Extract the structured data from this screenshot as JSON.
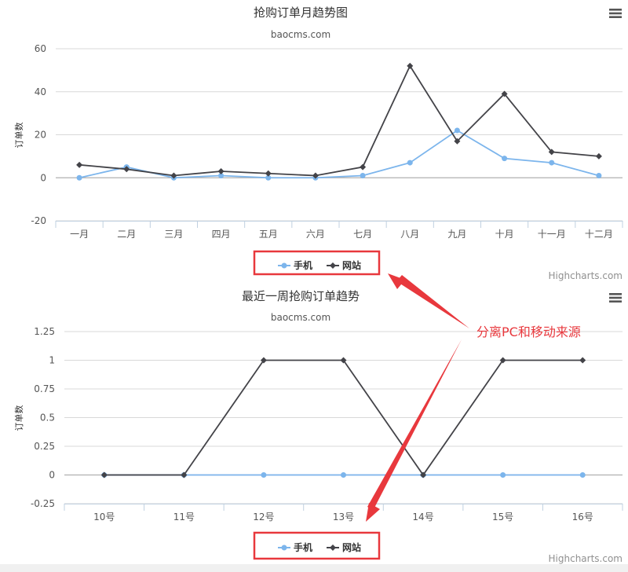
{
  "chart_data": [
    {
      "type": "line",
      "title": "抢购订单月趋势图",
      "subtitle": "baocms.com",
      "ylabel": "订单数",
      "xlabel": "",
      "ylim": [
        -20,
        60
      ],
      "y_ticks": [
        60,
        40,
        20,
        0,
        -20
      ],
      "categories": [
        "一月",
        "二月",
        "三月",
        "四月",
        "五月",
        "六月",
        "七月",
        "八月",
        "九月",
        "十月",
        "十一月",
        "十二月"
      ],
      "series": [
        {
          "name": "手机",
          "color": "#7cb5ec",
          "marker": "circle",
          "values": [
            0,
            5,
            0,
            1,
            0,
            0,
            1,
            7,
            22,
            9,
            7,
            1
          ]
        },
        {
          "name": "网站",
          "color": "#434348",
          "marker": "diamond",
          "values": [
            6,
            4,
            1,
            3,
            2,
            1,
            5,
            52,
            17,
            39,
            12,
            10
          ]
        }
      ],
      "legend": "bottom-center",
      "grid": true,
      "credits": "Highcharts.com",
      "menu_icon": "hamburger-menu-icon"
    },
    {
      "type": "line",
      "title": "最近一周抢购订单趋势",
      "subtitle": "baocms.com",
      "ylabel": "订单数",
      "xlabel": "",
      "ylim": [
        -0.25,
        1.25
      ],
      "y_ticks": [
        "1.25",
        "1",
        "0.75",
        "0.5",
        "0.25",
        "0",
        "-0.25"
      ],
      "categories": [
        "10号",
        "11号",
        "12号",
        "13号",
        "14号",
        "15号",
        "16号"
      ],
      "series": [
        {
          "name": "手机",
          "color": "#7cb5ec",
          "marker": "circle",
          "values": [
            0,
            0,
            0,
            0,
            0,
            0,
            0
          ]
        },
        {
          "name": "网站",
          "color": "#434348",
          "marker": "diamond",
          "values": [
            0,
            0,
            1,
            1,
            0,
            1,
            1
          ]
        }
      ],
      "legend": "bottom-center",
      "grid": true,
      "credits": "Highcharts.com",
      "menu_icon": "hamburger-menu-icon"
    }
  ],
  "annotation": {
    "text": "分离PC和移动来源",
    "color": "#e8383d"
  }
}
